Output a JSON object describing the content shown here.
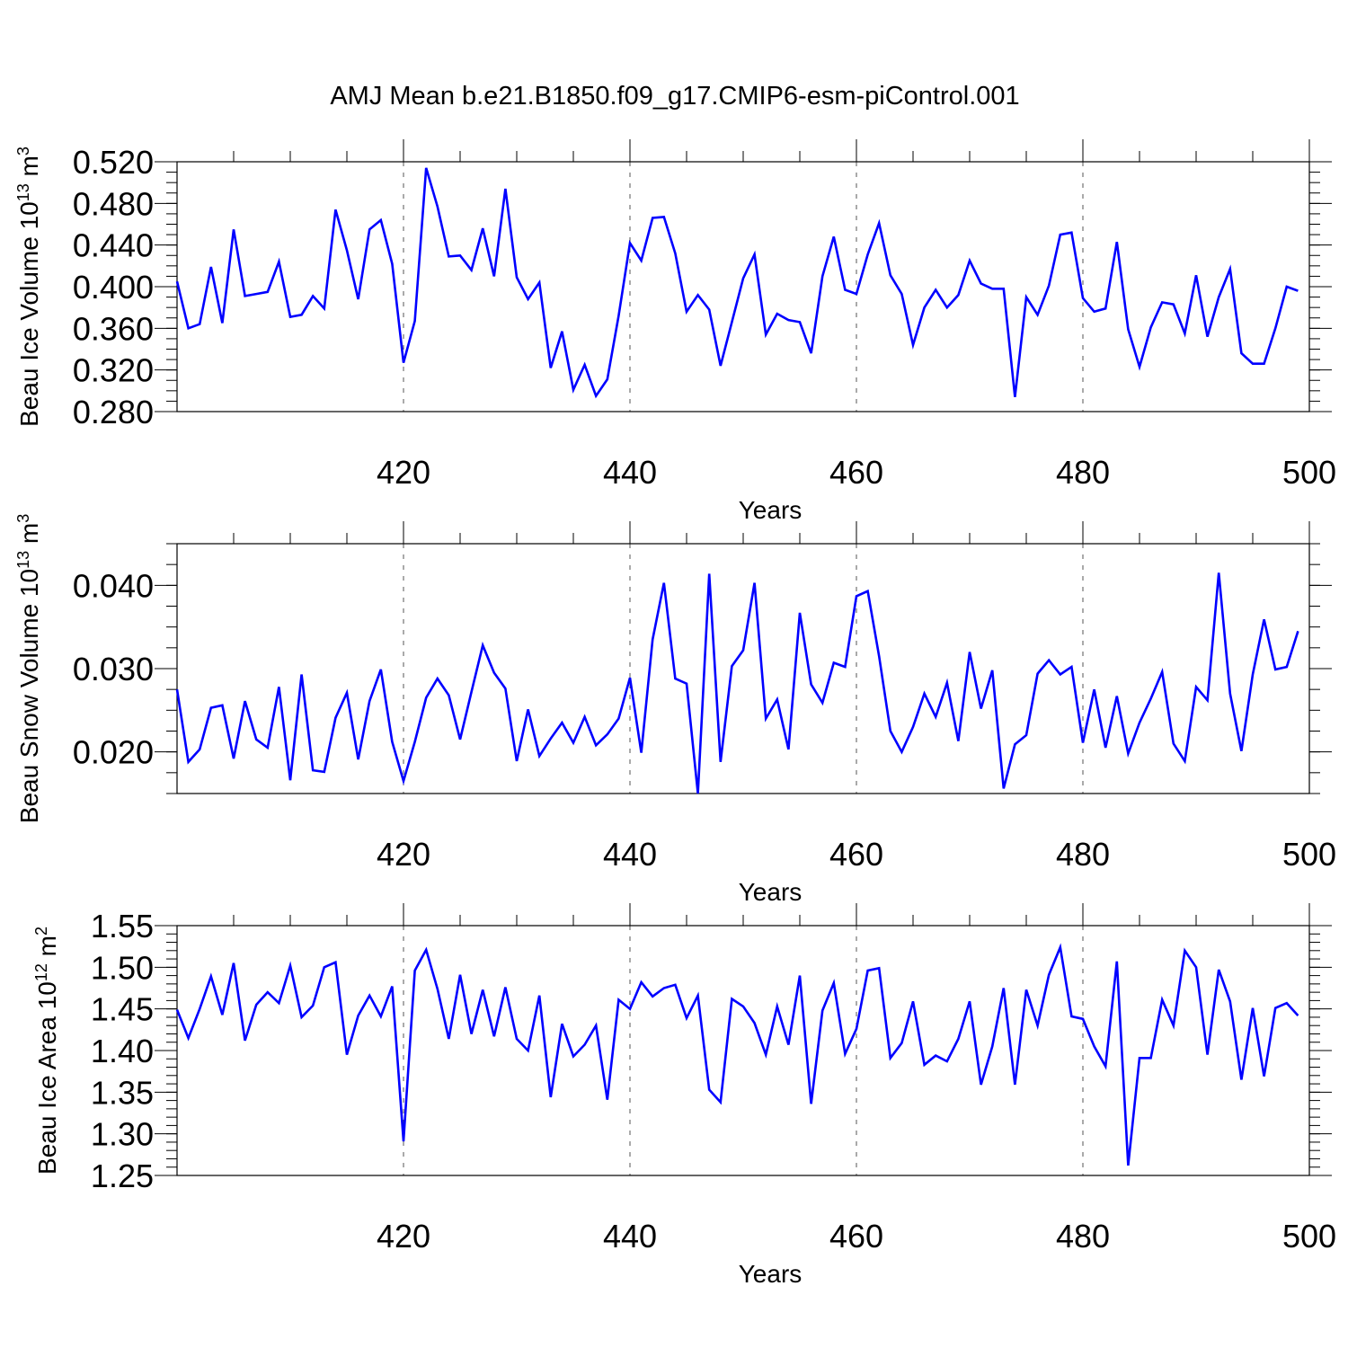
{
  "figure": {
    "title": "AMJ Mean b.e21.B1850.f09_g17.CMIP6-esm-piControl.001"
  },
  "colors": {
    "line": "#0000ff",
    "grid": "#555555",
    "frame": "#000000"
  },
  "chart_data": [
    {
      "type": "line",
      "ylabel": {
        "main": "Beau Ice Volume 10",
        "sup": "13",
        "tail": " m",
        "sup2": "3"
      },
      "xlabel": "Years",
      "xlim": [
        400,
        500
      ],
      "ylim": [
        0.28,
        0.52
      ],
      "xticks": [
        420,
        440,
        460,
        480,
        500
      ],
      "yticks": [
        0.28,
        0.32,
        0.36,
        0.4,
        0.44,
        0.48,
        0.52
      ],
      "ytick_labels": [
        "0.280",
        "0.320",
        "0.360",
        "0.400",
        "0.440",
        "0.480",
        "0.520"
      ],
      "ymin_minor": 0.01,
      "grid_x": [
        420,
        440,
        460,
        480
      ],
      "series": [
        {
          "x_start": 400,
          "values": [
            0.405,
            0.36,
            0.364,
            0.419,
            0.365,
            0.455,
            0.391,
            0.393,
            0.395,
            0.424,
            0.371,
            0.373,
            0.391,
            0.379,
            0.474,
            0.435,
            0.388,
            0.455,
            0.464,
            0.422,
            0.327,
            0.367,
            0.514,
            0.477,
            0.429,
            0.43,
            0.416,
            0.456,
            0.41,
            0.494,
            0.409,
            0.388,
            0.404,
            0.322,
            0.357,
            0.301,
            0.325,
            0.295,
            0.311,
            0.372,
            0.442,
            0.425,
            0.466,
            0.467,
            0.432,
            0.376,
            0.392,
            0.378,
            0.324,
            0.366,
            0.408,
            0.431,
            0.354,
            0.374,
            0.368,
            0.366,
            0.336,
            0.41,
            0.448,
            0.397,
            0.393,
            0.431,
            0.461,
            0.411,
            0.393,
            0.344,
            0.38,
            0.397,
            0.38,
            0.392,
            0.425,
            0.403,
            0.398,
            0.398,
            0.294,
            0.39,
            0.373,
            0.401,
            0.45,
            0.452,
            0.389,
            0.376,
            0.379,
            0.443,
            0.359,
            0.323,
            0.361,
            0.385,
            0.383,
            0.355,
            0.411,
            0.352,
            0.39,
            0.417,
            0.336,
            0.326,
            0.326,
            0.36,
            0.4,
            0.396
          ]
        }
      ]
    },
    {
      "type": "line",
      "ylabel": {
        "main": "Beau Snow Volume 10",
        "sup": "13",
        "tail": " m",
        "sup2": "3"
      },
      "xlabel": "Years",
      "xlim": [
        400,
        500
      ],
      "ylim": [
        0.015,
        0.045
      ],
      "xticks": [
        420,
        440,
        460,
        480,
        500
      ],
      "yticks": [
        0.02,
        0.03,
        0.04
      ],
      "ytick_labels": [
        "0.020",
        "0.030",
        "0.040"
      ],
      "ymin_minor": 0.0025,
      "grid_x": [
        420,
        440,
        460,
        480
      ],
      "series": [
        {
          "x_start": 400,
          "values": [
            0.0275,
            0.0188,
            0.0203,
            0.0253,
            0.0256,
            0.0192,
            0.0261,
            0.0215,
            0.0205,
            0.0278,
            0.0166,
            0.0293,
            0.0178,
            0.0176,
            0.0241,
            0.0271,
            0.0191,
            0.0261,
            0.0299,
            0.0212,
            0.0165,
            0.0212,
            0.0265,
            0.0288,
            0.0268,
            0.0215,
            0.0272,
            0.0328,
            0.0295,
            0.0276,
            0.0189,
            0.0251,
            0.0195,
            0.0216,
            0.0235,
            0.0211,
            0.0242,
            0.0208,
            0.0221,
            0.024,
            0.0289,
            0.0199,
            0.0335,
            0.0403,
            0.0288,
            0.0282,
            0.015,
            0.0414,
            0.0188,
            0.0303,
            0.0322,
            0.0403,
            0.024,
            0.0263,
            0.0203,
            0.0367,
            0.0281,
            0.0259,
            0.0307,
            0.0302,
            0.0387,
            0.0393,
            0.0315,
            0.0225,
            0.02,
            0.023,
            0.027,
            0.0242,
            0.0283,
            0.0213,
            0.032,
            0.0252,
            0.0298,
            0.0156,
            0.0209,
            0.022,
            0.0294,
            0.031,
            0.0293,
            0.0302,
            0.0211,
            0.0275,
            0.0205,
            0.0267,
            0.0198,
            0.0235,
            0.0264,
            0.0296,
            0.021,
            0.0189,
            0.0278,
            0.0262,
            0.0415,
            0.027,
            0.0201,
            0.0293,
            0.0359,
            0.0299,
            0.0302,
            0.0345
          ]
        }
      ]
    },
    {
      "type": "line",
      "ylabel": {
        "main": "Beau Ice Area 10",
        "sup": "12",
        "tail": " m",
        "sup2": "2"
      },
      "xlabel": "Years",
      "xlim": [
        400,
        500
      ],
      "ylim": [
        1.25,
        1.55
      ],
      "xticks": [
        420,
        440,
        460,
        480,
        500
      ],
      "yticks": [
        1.25,
        1.3,
        1.35,
        1.4,
        1.45,
        1.5,
        1.55
      ],
      "ytick_labels": [
        "1.25",
        "1.30",
        "1.35",
        "1.40",
        "1.45",
        "1.50",
        "1.55"
      ],
      "ymin_minor": 0.01,
      "grid_x": [
        420,
        440,
        460,
        480
      ],
      "series": [
        {
          "x_start": 400,
          "values": [
            1.449,
            1.415,
            1.45,
            1.489,
            1.443,
            1.505,
            1.412,
            1.455,
            1.47,
            1.457,
            1.502,
            1.44,
            1.454,
            1.5,
            1.506,
            1.395,
            1.442,
            1.466,
            1.441,
            1.477,
            1.291,
            1.496,
            1.521,
            1.474,
            1.414,
            1.491,
            1.42,
            1.473,
            1.417,
            1.476,
            1.414,
            1.4,
            1.466,
            1.344,
            1.432,
            1.393,
            1.407,
            1.43,
            1.341,
            1.461,
            1.45,
            1.482,
            1.465,
            1.475,
            1.479,
            1.439,
            1.466,
            1.353,
            1.338,
            1.462,
            1.453,
            1.433,
            1.395,
            1.453,
            1.407,
            1.49,
            1.336,
            1.448,
            1.481,
            1.396,
            1.426,
            1.496,
            1.499,
            1.391,
            1.409,
            1.459,
            1.383,
            1.394,
            1.387,
            1.414,
            1.459,
            1.359,
            1.405,
            1.475,
            1.359,
            1.473,
            1.43,
            1.491,
            1.524,
            1.441,
            1.438,
            1.405,
            1.381,
            1.507,
            1.262,
            1.391,
            1.391,
            1.461,
            1.43,
            1.52,
            1.5,
            1.395,
            1.497,
            1.459,
            1.365,
            1.451,
            1.369,
            1.451,
            1.457,
            1.442
          ]
        }
      ]
    }
  ]
}
